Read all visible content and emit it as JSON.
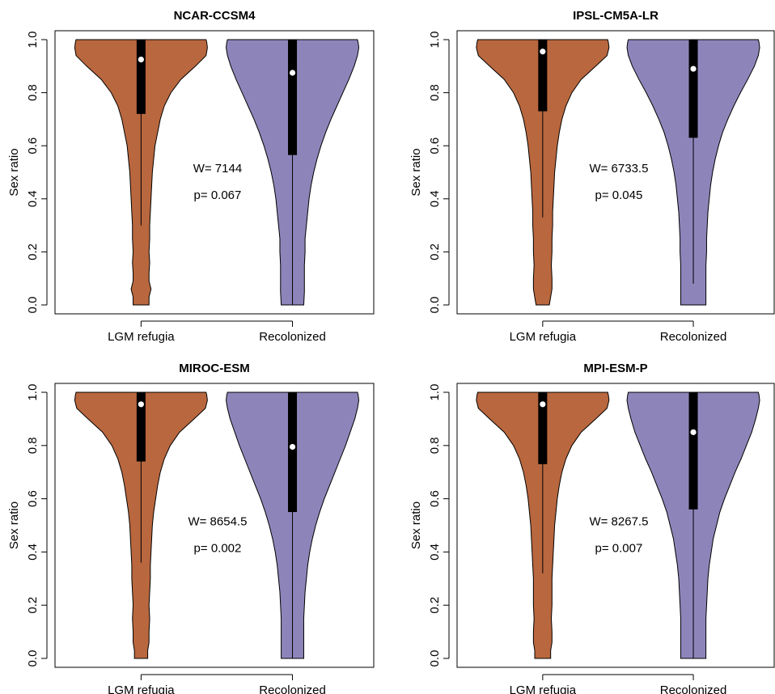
{
  "colors": {
    "lgm": "#B9673E",
    "recolonized": "#8D85BA",
    "box": "#000000",
    "median": "#FFFFFF"
  },
  "chart_data": [
    {
      "type": "violin",
      "title": "NCAR-CCSM4",
      "ylabel": "Sex ratio",
      "ylim": [
        0,
        1
      ],
      "yticks": [
        "0.0",
        "0.2",
        "0.4",
        "0.6",
        "0.8",
        "1.0"
      ],
      "categories": [
        "LGM refugia",
        "Recolonized"
      ],
      "stat_w": "W= 7144",
      "stat_p": "p= 0.067",
      "groups": [
        {
          "name": "LGM refugia",
          "median": 0.925,
          "q1": 0.72,
          "q3": 1.0,
          "whisker_low": 0.3,
          "whisker_high": 1.0,
          "min": 0.0,
          "max": 1.0,
          "density": [
            [
              0.0,
              0.12
            ],
            [
              0.03,
              0.12
            ],
            [
              0.06,
              0.15
            ],
            [
              0.09,
              0.12
            ],
            [
              0.12,
              0.12
            ],
            [
              0.16,
              0.13
            ],
            [
              0.2,
              0.12
            ],
            [
              0.25,
              0.13
            ],
            [
              0.3,
              0.13
            ],
            [
              0.35,
              0.14
            ],
            [
              0.4,
              0.15
            ],
            [
              0.45,
              0.16
            ],
            [
              0.5,
              0.17
            ],
            [
              0.55,
              0.19
            ],
            [
              0.6,
              0.21
            ],
            [
              0.65,
              0.25
            ],
            [
              0.7,
              0.29
            ],
            [
              0.75,
              0.35
            ],
            [
              0.8,
              0.45
            ],
            [
              0.85,
              0.6
            ],
            [
              0.9,
              0.82
            ],
            [
              0.94,
              0.98
            ],
            [
              0.97,
              1.0
            ],
            [
              0.99,
              0.99
            ],
            [
              1.0,
              0.98
            ]
          ]
        },
        {
          "name": "Recolonized",
          "median": 0.875,
          "q1": 0.565,
          "q3": 1.0,
          "whisker_low": 0.0,
          "whisker_high": 1.0,
          "min": 0.0,
          "max": 1.0,
          "density": [
            [
              0.0,
              0.17
            ],
            [
              0.05,
              0.18
            ],
            [
              0.1,
              0.18
            ],
            [
              0.15,
              0.18
            ],
            [
              0.2,
              0.19
            ],
            [
              0.25,
              0.19
            ],
            [
              0.3,
              0.21
            ],
            [
              0.35,
              0.23
            ],
            [
              0.4,
              0.25
            ],
            [
              0.45,
              0.28
            ],
            [
              0.5,
              0.32
            ],
            [
              0.55,
              0.37
            ],
            [
              0.6,
              0.43
            ],
            [
              0.65,
              0.5
            ],
            [
              0.7,
              0.58
            ],
            [
              0.75,
              0.67
            ],
            [
              0.8,
              0.76
            ],
            [
              0.85,
              0.85
            ],
            [
              0.9,
              0.93
            ],
            [
              0.94,
              0.98
            ],
            [
              0.97,
              1.0
            ],
            [
              0.99,
              0.99
            ],
            [
              1.0,
              0.98
            ]
          ]
        }
      ]
    },
    {
      "type": "violin",
      "title": "IPSL-CM5A-LR",
      "ylabel": "Sex ratio",
      "ylim": [
        0,
        1
      ],
      "yticks": [
        "0.0",
        "0.2",
        "0.4",
        "0.6",
        "0.8",
        "1.0"
      ],
      "categories": [
        "LGM refugia",
        "Recolonized"
      ],
      "stat_w": "W= 6733.5",
      "stat_p": "p= 0.045",
      "groups": [
        {
          "name": "LGM refugia",
          "median": 0.955,
          "q1": 0.73,
          "q3": 1.0,
          "whisker_low": 0.33,
          "whisker_high": 1.0,
          "min": 0.0,
          "max": 1.0,
          "density": [
            [
              0.0,
              0.1
            ],
            [
              0.03,
              0.12
            ],
            [
              0.06,
              0.14
            ],
            [
              0.1,
              0.14
            ],
            [
              0.15,
              0.13
            ],
            [
              0.2,
              0.14
            ],
            [
              0.25,
              0.14
            ],
            [
              0.3,
              0.15
            ],
            [
              0.35,
              0.15
            ],
            [
              0.4,
              0.16
            ],
            [
              0.45,
              0.17
            ],
            [
              0.5,
              0.18
            ],
            [
              0.55,
              0.2
            ],
            [
              0.6,
              0.22
            ],
            [
              0.65,
              0.25
            ],
            [
              0.7,
              0.29
            ],
            [
              0.75,
              0.35
            ],
            [
              0.8,
              0.44
            ],
            [
              0.85,
              0.58
            ],
            [
              0.9,
              0.8
            ],
            [
              0.94,
              0.97
            ],
            [
              0.97,
              1.0
            ],
            [
              0.99,
              0.99
            ],
            [
              1.0,
              0.98
            ]
          ]
        },
        {
          "name": "Recolonized",
          "median": 0.89,
          "q1": 0.63,
          "q3": 1.0,
          "whisker_low": 0.08,
          "whisker_high": 1.0,
          "min": 0.0,
          "max": 1.0,
          "density": [
            [
              0.0,
              0.19
            ],
            [
              0.05,
              0.19
            ],
            [
              0.1,
              0.19
            ],
            [
              0.15,
              0.19
            ],
            [
              0.2,
              0.2
            ],
            [
              0.25,
              0.2
            ],
            [
              0.3,
              0.21
            ],
            [
              0.35,
              0.22
            ],
            [
              0.4,
              0.24
            ],
            [
              0.45,
              0.26
            ],
            [
              0.5,
              0.29
            ],
            [
              0.55,
              0.33
            ],
            [
              0.6,
              0.38
            ],
            [
              0.65,
              0.44
            ],
            [
              0.7,
              0.52
            ],
            [
              0.75,
              0.61
            ],
            [
              0.8,
              0.71
            ],
            [
              0.85,
              0.82
            ],
            [
              0.9,
              0.92
            ],
            [
              0.94,
              0.98
            ],
            [
              0.97,
              1.0
            ],
            [
              0.99,
              0.99
            ],
            [
              1.0,
              0.98
            ]
          ]
        }
      ]
    },
    {
      "type": "violin",
      "title": "MIROC-ESM",
      "ylabel": "Sex ratio",
      "ylim": [
        0,
        1
      ],
      "yticks": [
        "0.0",
        "0.2",
        "0.4",
        "0.6",
        "0.8",
        "1.0"
      ],
      "categories": [
        "LGM refugia",
        "Recolonized"
      ],
      "stat_w": "W= 8654.5",
      "stat_p": "p= 0.002",
      "groups": [
        {
          "name": "LGM refugia",
          "median": 0.955,
          "q1": 0.74,
          "q3": 1.0,
          "whisker_low": 0.36,
          "whisker_high": 1.0,
          "min": 0.0,
          "max": 1.0,
          "density": [
            [
              0.0,
              0.1
            ],
            [
              0.03,
              0.1
            ],
            [
              0.06,
              0.12
            ],
            [
              0.1,
              0.12
            ],
            [
              0.15,
              0.13
            ],
            [
              0.2,
              0.12
            ],
            [
              0.25,
              0.13
            ],
            [
              0.3,
              0.14
            ],
            [
              0.35,
              0.14
            ],
            [
              0.4,
              0.15
            ],
            [
              0.45,
              0.16
            ],
            [
              0.5,
              0.17
            ],
            [
              0.55,
              0.19
            ],
            [
              0.6,
              0.22
            ],
            [
              0.65,
              0.25
            ],
            [
              0.7,
              0.29
            ],
            [
              0.75,
              0.35
            ],
            [
              0.8,
              0.44
            ],
            [
              0.85,
              0.58
            ],
            [
              0.9,
              0.8
            ],
            [
              0.94,
              0.97
            ],
            [
              0.97,
              1.0
            ],
            [
              0.99,
              0.99
            ],
            [
              1.0,
              0.98
            ]
          ]
        },
        {
          "name": "Recolonized",
          "median": 0.795,
          "q1": 0.55,
          "q3": 1.0,
          "whisker_low": 0.0,
          "whisker_high": 1.0,
          "min": 0.0,
          "max": 1.0,
          "density": [
            [
              0.0,
              0.17
            ],
            [
              0.05,
              0.17
            ],
            [
              0.1,
              0.17
            ],
            [
              0.15,
              0.17
            ],
            [
              0.2,
              0.18
            ],
            [
              0.25,
              0.19
            ],
            [
              0.3,
              0.21
            ],
            [
              0.35,
              0.23
            ],
            [
              0.4,
              0.26
            ],
            [
              0.45,
              0.3
            ],
            [
              0.5,
              0.35
            ],
            [
              0.55,
              0.41
            ],
            [
              0.6,
              0.48
            ],
            [
              0.65,
              0.56
            ],
            [
              0.7,
              0.64
            ],
            [
              0.75,
              0.72
            ],
            [
              0.8,
              0.8
            ],
            [
              0.85,
              0.87
            ],
            [
              0.9,
              0.94
            ],
            [
              0.94,
              0.98
            ],
            [
              0.97,
              1.0
            ],
            [
              0.99,
              0.99
            ],
            [
              1.0,
              0.98
            ]
          ]
        }
      ]
    },
    {
      "type": "violin",
      "title": "MPI-ESM-P",
      "ylabel": "Sex ratio",
      "ylim": [
        0,
        1
      ],
      "yticks": [
        "0.0",
        "0.2",
        "0.4",
        "0.6",
        "0.8",
        "1.0"
      ],
      "categories": [
        "LGM refugia",
        "Recolonized"
      ],
      "stat_w": "W= 8267.5",
      "stat_p": "p= 0.007",
      "groups": [
        {
          "name": "LGM refugia",
          "median": 0.955,
          "q1": 0.73,
          "q3": 1.0,
          "whisker_low": 0.32,
          "whisker_high": 1.0,
          "min": 0.0,
          "max": 1.0,
          "density": [
            [
              0.0,
              0.12
            ],
            [
              0.03,
              0.12
            ],
            [
              0.06,
              0.14
            ],
            [
              0.1,
              0.14
            ],
            [
              0.15,
              0.13
            ],
            [
              0.2,
              0.14
            ],
            [
              0.25,
              0.14
            ],
            [
              0.3,
              0.14
            ],
            [
              0.35,
              0.15
            ],
            [
              0.4,
              0.16
            ],
            [
              0.45,
              0.17
            ],
            [
              0.5,
              0.18
            ],
            [
              0.55,
              0.2
            ],
            [
              0.6,
              0.22
            ],
            [
              0.65,
              0.25
            ],
            [
              0.7,
              0.29
            ],
            [
              0.75,
              0.35
            ],
            [
              0.8,
              0.44
            ],
            [
              0.85,
              0.58
            ],
            [
              0.9,
              0.8
            ],
            [
              0.94,
              0.97
            ],
            [
              0.97,
              1.0
            ],
            [
              0.99,
              0.99
            ],
            [
              1.0,
              0.98
            ]
          ]
        },
        {
          "name": "Recolonized",
          "median": 0.85,
          "q1": 0.56,
          "q3": 1.0,
          "whisker_low": 0.0,
          "whisker_high": 1.0,
          "min": 0.0,
          "max": 1.0,
          "density": [
            [
              0.0,
              0.19
            ],
            [
              0.05,
              0.19
            ],
            [
              0.1,
              0.19
            ],
            [
              0.15,
              0.19
            ],
            [
              0.2,
              0.2
            ],
            [
              0.25,
              0.21
            ],
            [
              0.3,
              0.22
            ],
            [
              0.35,
              0.24
            ],
            [
              0.4,
              0.27
            ],
            [
              0.45,
              0.3
            ],
            [
              0.5,
              0.35
            ],
            [
              0.55,
              0.4
            ],
            [
              0.6,
              0.47
            ],
            [
              0.65,
              0.55
            ],
            [
              0.7,
              0.63
            ],
            [
              0.75,
              0.72
            ],
            [
              0.8,
              0.8
            ],
            [
              0.85,
              0.88
            ],
            [
              0.9,
              0.94
            ],
            [
              0.94,
              0.98
            ],
            [
              0.97,
              1.0
            ],
            [
              0.99,
              0.99
            ],
            [
              1.0,
              0.98
            ]
          ]
        }
      ]
    }
  ]
}
